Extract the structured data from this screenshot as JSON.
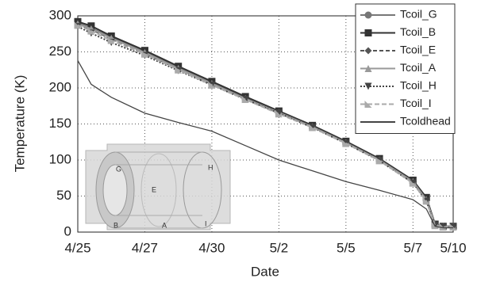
{
  "chart_data": {
    "type": "line",
    "xlabel": "Date",
    "ylabel": "Temperature (K)",
    "x": [
      0,
      0.2,
      0.5,
      1,
      1.5,
      2,
      2.5,
      3,
      3.5,
      4,
      4.5,
      5,
      5.2,
      5.33,
      5.45,
      5.6
    ],
    "xlim": [
      0,
      5.6
    ],
    "xticks": [
      {
        "value": 0,
        "label": "4/25"
      },
      {
        "value": 1,
        "label": "4/27"
      },
      {
        "value": 2,
        "label": "4/30"
      },
      {
        "value": 3,
        "label": "5/2"
      },
      {
        "value": 4,
        "label": "5/5"
      },
      {
        "value": 5,
        "label": "5/7"
      },
      {
        "value": 5.6,
        "label": "5/10"
      }
    ],
    "ylim": [
      0,
      300
    ],
    "yticks": [
      0,
      50,
      100,
      150,
      200,
      250,
      300
    ],
    "grid": true,
    "legend": "upper right",
    "series": [
      {
        "name": "Tcoil_G",
        "color": "#777777",
        "marker": "circle",
        "dash": "",
        "values": [
          290,
          283,
          270,
          250,
          228,
          207,
          186,
          167,
          147,
          125,
          101,
          70,
          45,
          10,
          8,
          8
        ]
      },
      {
        "name": "Tcoil_B",
        "color": "#333333",
        "marker": "square",
        "dash": "",
        "values": [
          292,
          286,
          272,
          252,
          230,
          209,
          188,
          168,
          148,
          126,
          102,
          72,
          48,
          11,
          8,
          8
        ]
      },
      {
        "name": "Tcoil_E",
        "color": "#555555",
        "marker": "diamond",
        "dash": "5 3",
        "values": [
          288,
          281,
          268,
          248,
          226,
          205,
          185,
          165,
          146,
          124,
          100,
          69,
          44,
          10,
          8,
          8
        ]
      },
      {
        "name": "Tcoil_A",
        "color": "#999999",
        "marker": "triangle",
        "dash": "",
        "values": [
          289,
          282,
          269,
          249,
          227,
          206,
          185,
          166,
          146,
          124,
          100,
          70,
          45,
          10,
          8,
          8
        ]
      },
      {
        "name": "Tcoil_H",
        "color": "#444444",
        "marker": "triangle-down",
        "dash": "2 2",
        "values": [
          285,
          276,
          263,
          245,
          224,
          204,
          184,
          165,
          145,
          123,
          99,
          68,
          43,
          9,
          7,
          7
        ]
      },
      {
        "name": "Tcoil_I",
        "color": "#aaaaaa",
        "marker": "triangle-right",
        "dash": "6 3",
        "values": [
          287,
          279,
          266,
          247,
          225,
          204,
          184,
          164,
          145,
          123,
          99,
          68,
          43,
          9,
          7,
          7
        ]
      },
      {
        "name": "Tcoldhead",
        "color": "#444444",
        "marker": "none",
        "dash": "",
        "values": [
          238,
          205,
          187,
          165,
          152,
          140,
          120,
          100,
          85,
          70,
          58,
          45,
          32,
          8,
          6,
          6
        ]
      }
    ],
    "annotations": [
      "G",
      "H",
      "E",
      "B",
      "A",
      "I"
    ]
  }
}
